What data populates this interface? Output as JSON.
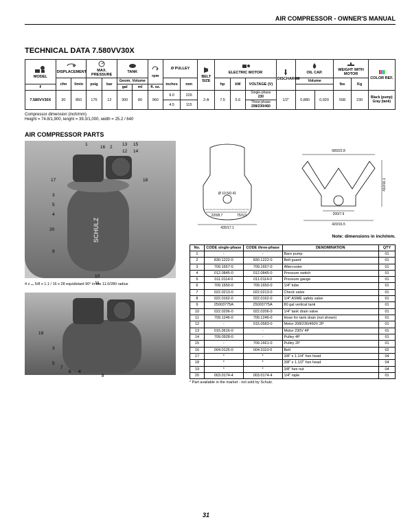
{
  "header": {
    "title": "AIR COMPRESSOR - OWNER'S MANUAL"
  },
  "tech": {
    "heading": "TECHNICAL DATA 7.580VV30X",
    "headers": {
      "model": "MODEL",
      "displacement": "DISPLACEMENT",
      "max_pressure": "MAX. PRESSURE",
      "tank": "TANK",
      "geom_volume": "Geom. Volume",
      "rpm": "rpm",
      "pulley": "Ø PULLEY",
      "belt_size": "BELT SIZE",
      "electric_motor": "ELECTRIC MOTOR",
      "discharge": "DISCHARGE",
      "oil_cap": "OIL CAP.",
      "weight": "WEIGHT WITH MOTOR",
      "color": "COLOR REF.",
      "cfm": "cfm",
      "lmin": "l/min",
      "psig": "psig",
      "bar": "bar",
      "l": "ℓ",
      "gal": "gal",
      "inches": "inches",
      "mm": "mm",
      "hp": "hp",
      "kw": "kW",
      "voltage": "VOLTAGE (V)",
      "volume": "Volume",
      "ml": "ml",
      "floz": "fl. oz.",
      "lbs": "lbs",
      "kg": "Kg",
      "single_phase": "Single-phase",
      "three_phase": "Three-phase"
    },
    "row": {
      "model": "7.580VV30X",
      "cfm": "30",
      "lmin": "850",
      "psig": "175",
      "bar": "12",
      "tank_l": "300",
      "tank_gal": "80",
      "rpm": "960",
      "pulley_in_top": "9.0",
      "pulley_mm_top": "226",
      "pulley_in_bot": "4.5",
      "pulley_mm_bot": "115",
      "belt": "2-A",
      "hp": "7.5",
      "kw": "5.6",
      "volt1": "230",
      "volt3": "208/230/460",
      "discharge": "1/2\"",
      "oil_ml": "0,880",
      "oil_floz": "0,920",
      "lbs": "508",
      "kg": "230",
      "color": "Black (pump) Gray (tank)"
    },
    "dim_note1": "Compressor dimension (inch/mm)",
    "dim_note2": "Height = 74.8/1,900, lenght = 39.3/1,000, width = 25.2 / 640"
  },
  "parts": {
    "heading": "AIR COMPRESSOR PARTS",
    "small_note": "4 x ⌴ 5/8 x 1.1 / 16 x 28 equidistant 90° in the 11.0/280 radius",
    "dim_note": "Note: dimensions in inch/mm.",
    "diag_dims": {
      "d1": "Ø 10.5/0.41",
      "d2": "220/8.7",
      "d3": "75/3.0",
      "d4": "435/17.1",
      "w_top": "580/22.8",
      "h_right": "410/16.1",
      "w_small": "200/7.9",
      "w_bot": "420/16.5"
    },
    "callouts_main": [
      "1",
      "16",
      "2",
      "13",
      "15",
      "12",
      "14",
      "17",
      "18",
      "3",
      "5",
      "4",
      "20",
      "9",
      "10",
      "11"
    ],
    "callouts_sub": [
      "19",
      "3",
      "5",
      "7",
      "6",
      "4",
      "8"
    ]
  },
  "bom": {
    "headers": {
      "no": "No.",
      "code1": "CODE single-phase",
      "code2": "CODE three-phase",
      "denom": "DENOMINATION",
      "qty": "QTY"
    },
    "rows": [
      {
        "no": "1",
        "c1": "-",
        "c2": "-",
        "d": "Bare pump",
        "q": "01"
      },
      {
        "no": "2",
        "c1": "830.1222-0",
        "c2": "830.1222-0",
        "d": "Belt guard",
        "q": "01"
      },
      {
        "no": "3",
        "c1": "709.1657-0",
        "c2": "709.1657-0",
        "d": "Aftercooler",
        "q": "01"
      },
      {
        "no": "4",
        "c1": "012.0845-0",
        "c2": "012.0845-0",
        "d": "Pressure switch",
        "q": "01"
      },
      {
        "no": "5",
        "c1": "011.0114-0",
        "c2": "011.0114-0",
        "d": "Pressure gauge",
        "q": "01"
      },
      {
        "no": "6",
        "c1": "709.1650-0",
        "c2": "709.1650-0",
        "d": "1/4\" tube",
        "q": "01"
      },
      {
        "no": "7",
        "c1": "022.0213-0",
        "c2": "022.0213-0",
        "d": "Check valve",
        "q": "01"
      },
      {
        "no": "8",
        "c1": "022.0162-0",
        "c2": "022.0162-0",
        "d": "1/4\" ASME safety valve",
        "q": "01"
      },
      {
        "no": "9",
        "c1": "25003775A",
        "c2": "25003775A",
        "d": "80 gal vertical tank",
        "q": "01"
      },
      {
        "no": "10",
        "c1": "022.0206-0",
        "c2": "022.0206-0",
        "d": "1/4\" tank drain valve",
        "q": "01"
      },
      {
        "no": "11",
        "c1": "709.1246-0",
        "c2": "709.1246-0",
        "d": "Hose for tank drain (not shown)",
        "q": "01"
      },
      {
        "no": "12",
        "c1": "-",
        "c2": "015.0583-0",
        "d": "Motor 208/230/460V 2P",
        "q": "01"
      },
      {
        "no": "13",
        "c1": "015.0616-0",
        "c2": "-",
        "d": "Motor 230V 4P",
        "q": "01"
      },
      {
        "no": "14",
        "c1": "709.0928-0",
        "c2": "-",
        "d": "Pulley 4P",
        "q": "01"
      },
      {
        "no": "15",
        "c1": "-",
        "c2": "709.1661-0",
        "d": "Pulley 2P",
        "q": "01"
      },
      {
        "no": "16",
        "c1": "004.0125-0",
        "c2": "004.0110-0",
        "d": "Belt",
        "q": "02"
      },
      {
        "no": "17",
        "c1": "*",
        "c2": "*",
        "d": "3/8\" x 1.1/4\" hex head",
        "q": "04"
      },
      {
        "no": "18",
        "c1": "*",
        "c2": "*",
        "d": "3/8\" x 1.1/2\" hex head",
        "q": "04"
      },
      {
        "no": "19",
        "c1": "*",
        "c2": "*",
        "d": "3/8\" hex nut",
        "q": "04"
      },
      {
        "no": "20",
        "c1": "003.0174-4",
        "c2": "003.0174-4",
        "d": "1/4\" niple",
        "q": "01"
      }
    ],
    "footnote": "* Part available in the market  - not sold by Schulz."
  },
  "page_number": "31"
}
